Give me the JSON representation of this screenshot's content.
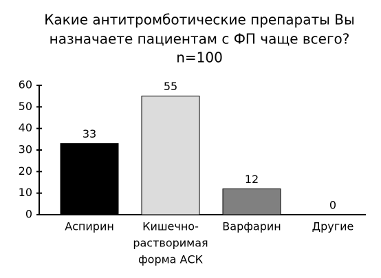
{
  "chart_data": {
    "type": "bar",
    "title": [
      "Какие антитромботические препараты Вы",
      "назначаете пациентам с ФП чаще всего?",
      "n=100"
    ],
    "categories": [
      [
        "Аспирин"
      ],
      [
        "Кишечно-",
        "растворимая",
        "форма АСК"
      ],
      [
        "Варфарин"
      ],
      [
        "Другие"
      ]
    ],
    "values": [
      33,
      55,
      12,
      0
    ],
    "colors": [
      "#000000",
      "#dcdcdc",
      "#808080",
      "#ffffff"
    ],
    "ylim": [
      0,
      60
    ],
    "yticks": [
      0,
      10,
      20,
      30,
      40,
      50,
      60
    ],
    "grid": false
  }
}
